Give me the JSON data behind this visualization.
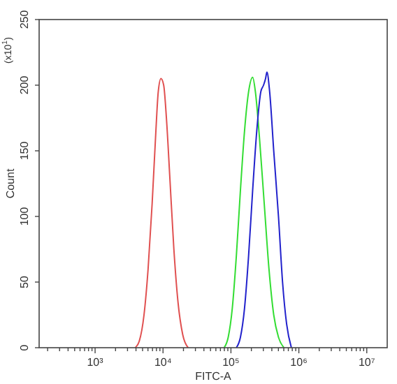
{
  "chart_data": {
    "type": "line",
    "xlabel": "FITC-A",
    "ylabel": "Count",
    "annotations": [
      "(x10$^{1}$)"
    ],
    "log": "x",
    "grid": false,
    "marker": "none",
    "line_style": "solid",
    "xlim": [
      150,
      20000000
    ],
    "ylim": [
      0,
      250
    ],
    "xticks": [
      {
        "value": 200,
        "label": null
      },
      {
        "value": 300,
        "label": null
      },
      {
        "value": 400,
        "label": null
      },
      {
        "value": 500,
        "label": null
      },
      {
        "value": 600,
        "label": null
      },
      {
        "value": 700,
        "label": null
      },
      {
        "value": 800,
        "label": null
      },
      {
        "value": 900,
        "label": null
      },
      {
        "value": 1000,
        "label": "10³"
      },
      {
        "value": 2000,
        "label": null
      },
      {
        "value": 3000,
        "label": null
      },
      {
        "value": 4000,
        "label": null
      },
      {
        "value": 5000,
        "label": null
      },
      {
        "value": 6000,
        "label": null
      },
      {
        "value": 7000,
        "label": null
      },
      {
        "value": 8000,
        "label": null
      },
      {
        "value": 9000,
        "label": null
      },
      {
        "value": 10000,
        "label": "10⁴"
      },
      {
        "value": 20000,
        "label": null
      },
      {
        "value": 30000,
        "label": null
      },
      {
        "value": 40000,
        "label": null
      },
      {
        "value": 50000,
        "label": null
      },
      {
        "value": 60000,
        "label": null
      },
      {
        "value": 70000,
        "label": null
      },
      {
        "value": 80000,
        "label": null
      },
      {
        "value": 90000,
        "label": null
      },
      {
        "value": 100000,
        "label": "10⁵"
      },
      {
        "value": 200000,
        "label": null
      },
      {
        "value": 300000,
        "label": null
      },
      {
        "value": 400000,
        "label": null
      },
      {
        "value": 500000,
        "label": null
      },
      {
        "value": 600000,
        "label": null
      },
      {
        "value": 700000,
        "label": null
      },
      {
        "value": 800000,
        "label": null
      },
      {
        "value": 900000,
        "label": null
      },
      {
        "value": 1000000,
        "label": "10⁶"
      },
      {
        "value": 2000000,
        "label": null
      },
      {
        "value": 3000000,
        "label": null
      },
      {
        "value": 4000000,
        "label": null
      },
      {
        "value": 5000000,
        "label": null
      },
      {
        "value": 6000000,
        "label": null
      },
      {
        "value": 7000000,
        "label": null
      },
      {
        "value": 8000000,
        "label": null
      },
      {
        "value": 9000000,
        "label": null
      },
      {
        "value": 10000000,
        "label": "10⁷"
      }
    ],
    "yticks": [
      0,
      50,
      100,
      150,
      200,
      250
    ],
    "series": [
      {
        "color": "#e05050",
        "x": [
          3890,
          4470,
          5250,
          6030,
          6920,
          7760,
          8510,
          9330,
          10230,
          11220,
          12590,
          14450,
          16600,
          19500,
          23400
        ],
        "values": [
          0,
          5,
          25,
          60,
          110,
          160,
          195,
          205,
          200,
          175,
          130,
          75,
          35,
          10,
          0
        ]
      },
      {
        "color": "#33dd33",
        "x": [
          79400,
          91200,
          104700,
          120200,
          138000,
          158500,
          182000,
          208900,
          229100,
          263000,
          309000,
          363100,
          426600,
          501200,
          602600
        ],
        "values": [
          0,
          8,
          30,
          70,
          120,
          165,
          195,
          206,
          195,
          160,
          110,
          60,
          25,
          8,
          0
        ]
      },
      {
        "color": "#2222cc",
        "x": [
          120200,
          138000,
          158500,
          182000,
          208900,
          239900,
          275400,
          302000,
          323600,
          338800,
          371500,
          426600,
          501200,
          575400,
          660700,
          776200
        ],
        "values": [
          0,
          8,
          30,
          70,
          120,
          165,
          195,
          200,
          205,
          210,
          195,
          150,
          100,
          50,
          18,
          0
        ]
      }
    ]
  }
}
